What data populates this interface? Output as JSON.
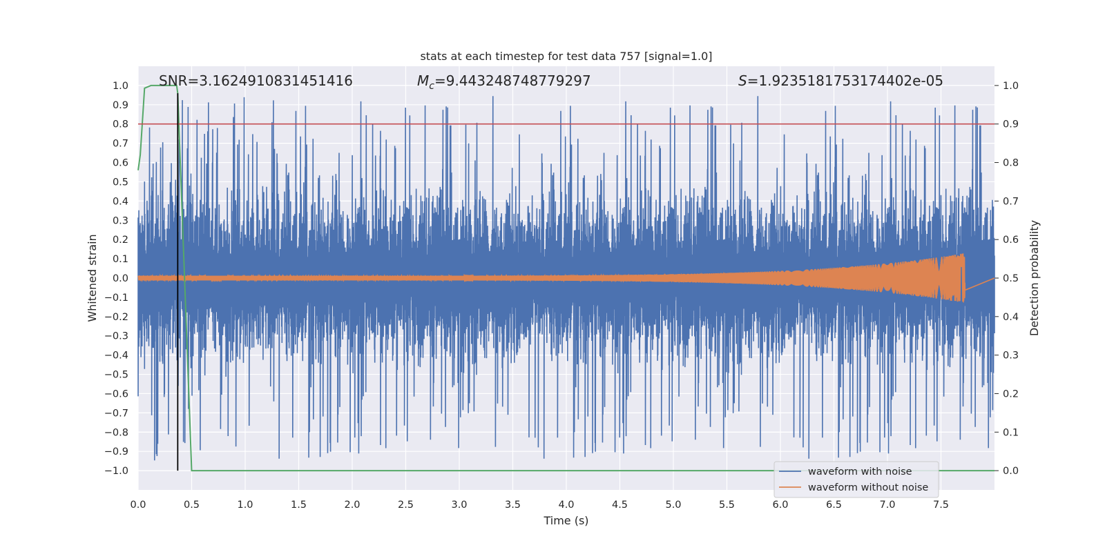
{
  "chart_data": {
    "type": "line",
    "title": "stats at each timestep for test data 757 [signal=1.0]",
    "xlabel": "Time (s)",
    "ylabel": "Whitened strain",
    "y2label": "Detection probability",
    "xlim": [
      0.0,
      8.0
    ],
    "ylim": [
      -1.1,
      1.1
    ],
    "y2lim": [
      -0.05,
      1.05
    ],
    "xticks": [
      "0.0",
      "0.5",
      "1.0",
      "1.5",
      "2.0",
      "2.5",
      "3.0",
      "3.5",
      "4.0",
      "4.5",
      "5.0",
      "5.5",
      "6.0",
      "6.5",
      "7.0",
      "7.5"
    ],
    "yticks": [
      "1.0",
      "0.9",
      "0.8",
      "0.7",
      "0.6",
      "0.5",
      "0.4",
      "0.3",
      "0.2",
      "0.1",
      "0.0",
      "−0.1",
      "−0.2",
      "−0.3",
      "−0.4",
      "−0.5",
      "−0.6",
      "−0.7",
      "−0.8",
      "−0.9",
      "−1.0"
    ],
    "y2ticks": [
      "1.0",
      "0.9",
      "0.8",
      "0.7",
      "0.6",
      "0.5",
      "0.4",
      "0.3",
      "0.2",
      "0.1",
      "0.0"
    ],
    "grid": true,
    "legend_position": "lower-right",
    "annotations": {
      "snr": "SNR=3.1624910831451416",
      "mc_symbol": "M",
      "mc_sub": "c",
      "mc_value": "=9.443248748779297",
      "s_symbol": "S",
      "s_value": "=1.9235181753174402e-05"
    },
    "series": [
      {
        "name": "waveform with noise",
        "color": "#4c72b0",
        "axis": "left",
        "description": "dense noisy strain, amplitude mostly within ±0.45 with spikes up to about ±0.95",
        "envelope_typical": 0.4,
        "spike_max": 0.95
      },
      {
        "name": "waveform without noise",
        "color": "#dd8452",
        "axis": "left",
        "description": "chirp signal, amplitude grows from ~0.01 to ~0.13, ends at t=7.73 s",
        "amp_start": 0.012,
        "amp_end": 0.13,
        "t_end": 7.73
      },
      {
        "name": "detection probability",
        "color": "#55a868",
        "axis": "right",
        "x": [
          0.0,
          0.02,
          0.06,
          0.12,
          0.2,
          0.28,
          0.36,
          0.37,
          0.5,
          8.0
        ],
        "y": [
          0.78,
          0.82,
          0.993,
          1.0,
          1.0,
          1.0,
          1.0,
          0.98,
          0.0,
          0.0
        ]
      }
    ],
    "threshold": {
      "value": 0.9,
      "axis": "right",
      "color": "#c44e52"
    },
    "marker_line": {
      "x": 0.37,
      "y_from": -1.0,
      "y_to": 0.98,
      "color": "#000000"
    }
  }
}
